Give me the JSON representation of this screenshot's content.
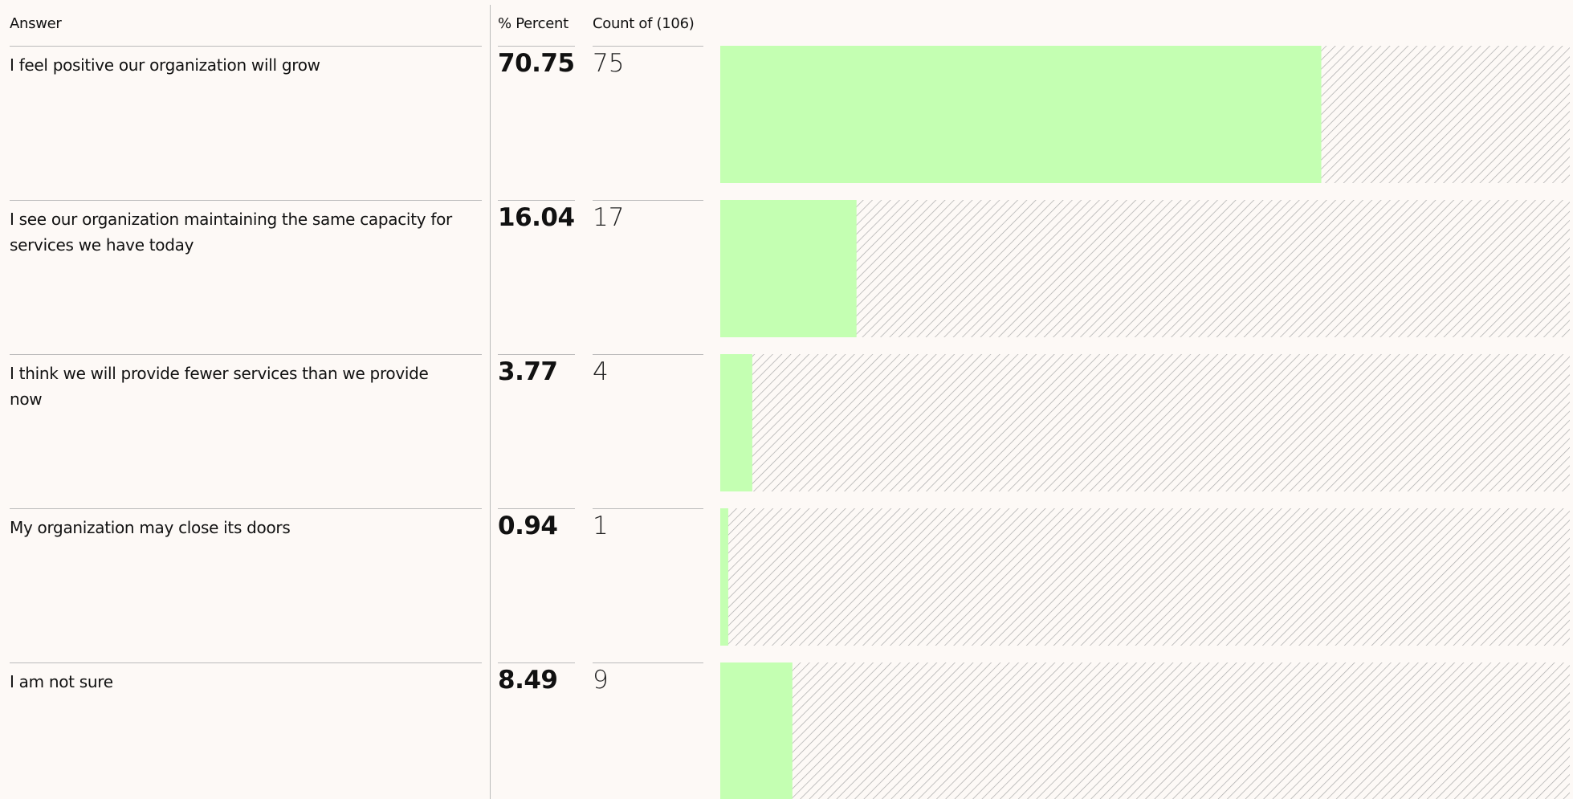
{
  "chart_data": {
    "type": "bar",
    "headers": {
      "answer": "Answer",
      "percent": "% Percent",
      "count": "Count of (106)"
    },
    "categories": [
      "I feel positive our organization will grow",
      "I see our organization maintaining the same capacity for services we have today",
      "I think we will provide fewer services than we provide now",
      "My organization may close its doors",
      "I am not sure"
    ],
    "values": [
      70.75,
      16.04,
      3.77,
      0.94,
      8.49
    ],
    "counts": [
      75,
      17,
      4,
      1,
      9
    ],
    "color": "#c4ffb2",
    "track_hatch": true,
    "xlim": [
      0,
      100
    ]
  }
}
